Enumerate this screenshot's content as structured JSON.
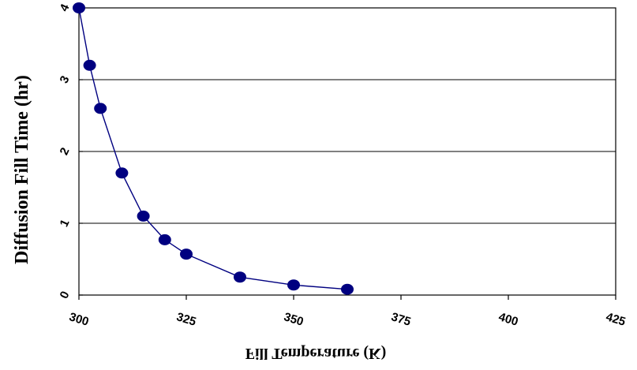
{
  "chart_data": {
    "type": "line",
    "title": "",
    "xlabel": "Fill Temperature (K)",
    "ylabel": "Diffusion Fill Time (hr)",
    "xlim": [
      300,
      425
    ],
    "ylim": [
      0,
      4
    ],
    "x_ticks": [
      300,
      325,
      350,
      375,
      400,
      425
    ],
    "x_tick_labels": [
      "300",
      "325",
      "350",
      "375",
      "400",
      "425"
    ],
    "y_ticks": [
      0,
      1,
      2,
      3,
      4
    ],
    "y_tick_labels": [
      "0",
      "1",
      "2",
      "3",
      "4"
    ],
    "grid": "horizontal",
    "legend": "none",
    "colors": {
      "series": "#000080",
      "grid": "#000000",
      "axis": "#000000"
    },
    "series": [
      {
        "x": [
          300,
          302.5,
          305,
          310,
          315,
          320,
          325,
          337.5,
          350,
          362.5
        ],
        "values": [
          4.0,
          3.2,
          2.6,
          1.7,
          1.1,
          0.77,
          0.57,
          0.25,
          0.14,
          0.08
        ]
      }
    ]
  }
}
